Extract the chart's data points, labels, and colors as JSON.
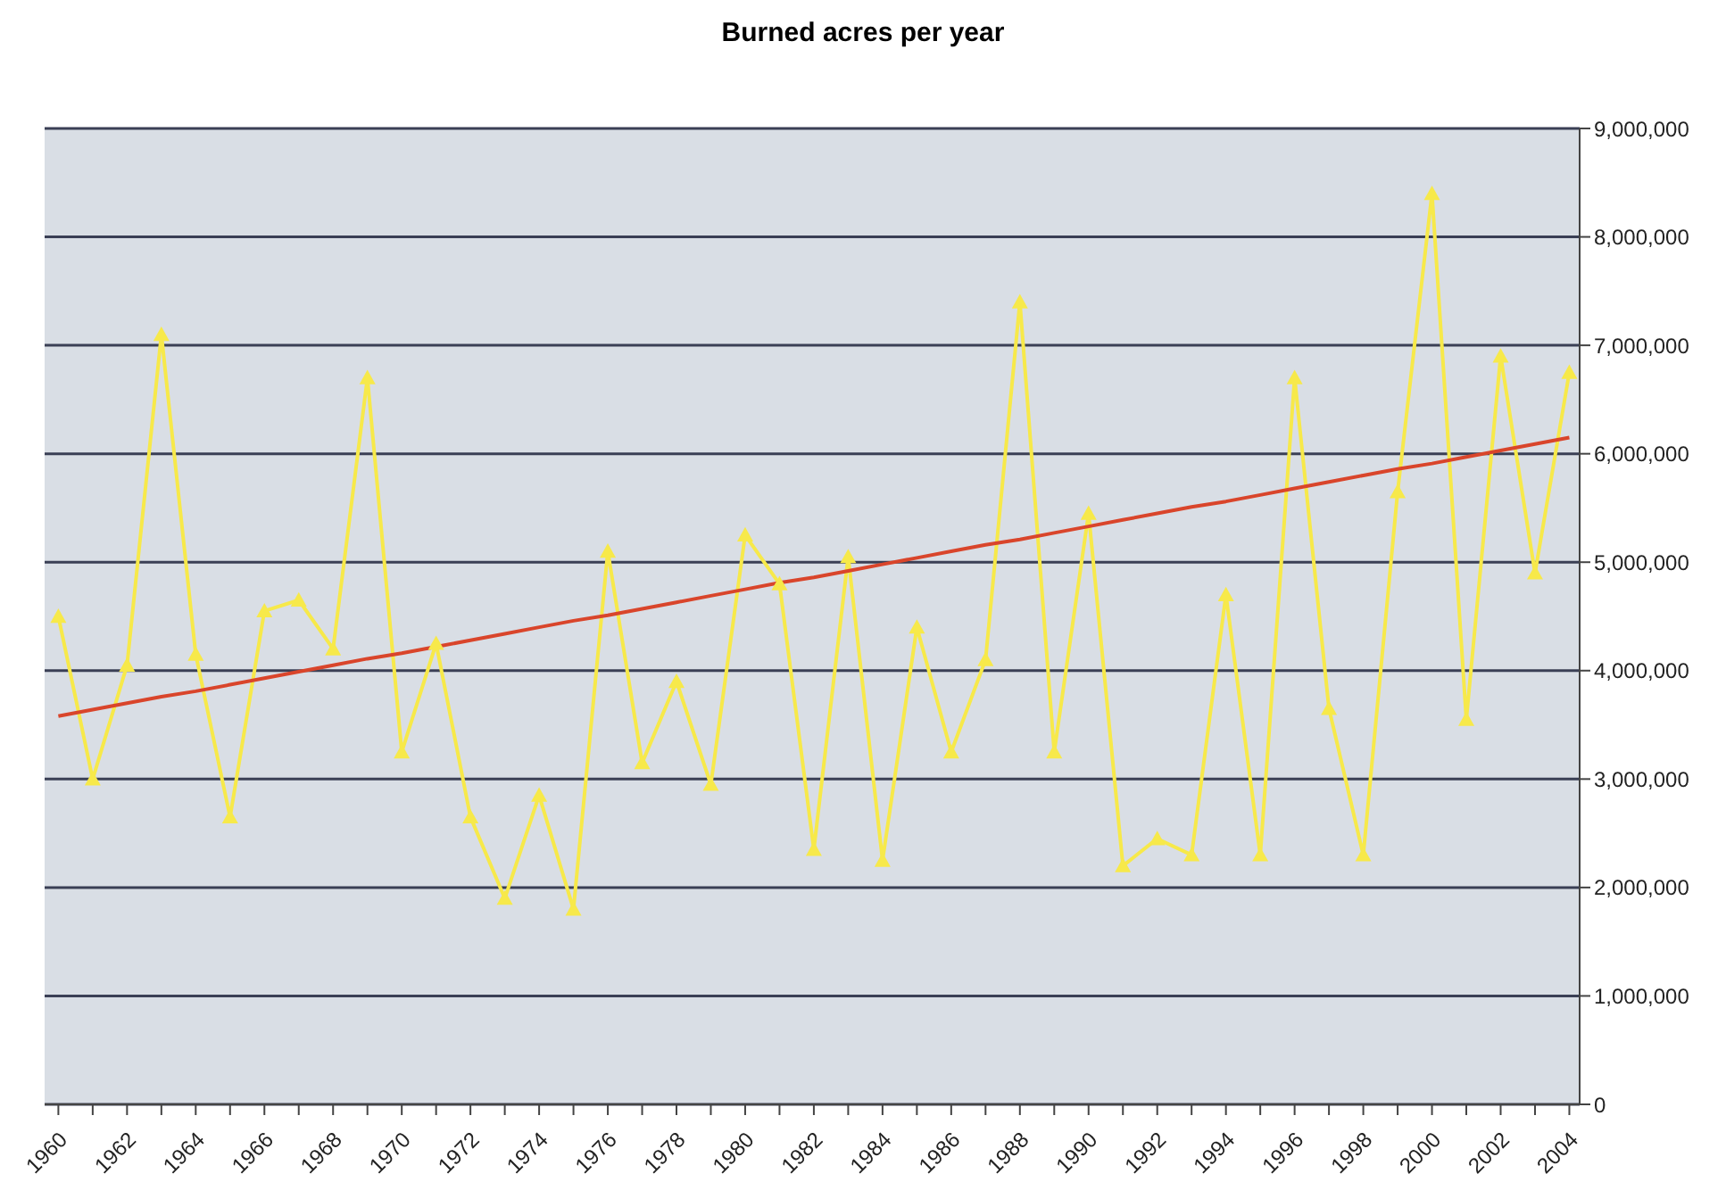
{
  "chart_data": {
    "type": "line",
    "title": "Burned acres per year",
    "categories": [
      "1960",
      null,
      "1962",
      null,
      "1964",
      null,
      "1966",
      null,
      "1968",
      null,
      "1970",
      null,
      "1972",
      null,
      "1974",
      null,
      "1976",
      null,
      "1978",
      null,
      "1980",
      null,
      "1982",
      null,
      "1984",
      null,
      "1986",
      null,
      "1988",
      null,
      "1990",
      null,
      "1992",
      null,
      "1994",
      null,
      "1996",
      null,
      "1998",
      null,
      "2000",
      null,
      "2002",
      null,
      "2004"
    ],
    "series": [
      {
        "color": "#f7e94a",
        "marker": "triangle",
        "values": [
          4500000,
          3000000,
          4050000,
          7100000,
          4150000,
          2650000,
          4550000,
          4650000,
          4200000,
          6700000,
          3250000,
          4250000,
          2650000,
          1900000,
          2850000,
          1800000,
          5100000,
          3150000,
          3900000,
          2950000,
          5250000,
          4800000,
          2350000,
          5050000,
          2250000,
          4400000,
          3250000,
          4100000,
          7400000,
          3250000,
          5450000,
          2200000,
          2450000,
          2300000,
          4700000,
          2300000,
          6700000,
          3650000,
          2300000,
          5650000,
          8400000,
          3550000,
          6900000,
          4900000,
          6750000
        ]
      },
      {
        "color": "#d9452b",
        "marker": "none",
        "values": [
          3580000,
          3640000,
          3700000,
          3760000,
          3810000,
          3870000,
          3930000,
          3990000,
          4050000,
          4110000,
          4160000,
          4220000,
          4280000,
          4340000,
          4400000,
          4460000,
          4510000,
          4570000,
          4630000,
          4690000,
          4750000,
          4810000,
          4860000,
          4920000,
          4980000,
          5040000,
          5100000,
          5160000,
          5210000,
          5270000,
          5330000,
          5390000,
          5450000,
          5510000,
          5560000,
          5620000,
          5680000,
          5740000,
          5800000,
          5860000,
          5910000,
          5970000,
          6030000,
          6090000,
          6150000
        ]
      }
    ],
    "ylim": [
      0,
      9000000
    ],
    "yticks": [
      {
        "value": 0,
        "label": "0"
      },
      {
        "value": 1000000,
        "label": "1,000,000"
      },
      {
        "value": 2000000,
        "label": "2,000,000"
      },
      {
        "value": 3000000,
        "label": "3,000,000"
      },
      {
        "value": 4000000,
        "label": "4,000,000"
      },
      {
        "value": 5000000,
        "label": "5,000,000"
      },
      {
        "value": 6000000,
        "label": "6,000,000"
      },
      {
        "value": 7000000,
        "label": "7,000,000"
      },
      {
        "value": 8000000,
        "label": "8,000,000"
      },
      {
        "value": 9000000,
        "label": "9,000,000"
      }
    ],
    "grid": "y"
  }
}
